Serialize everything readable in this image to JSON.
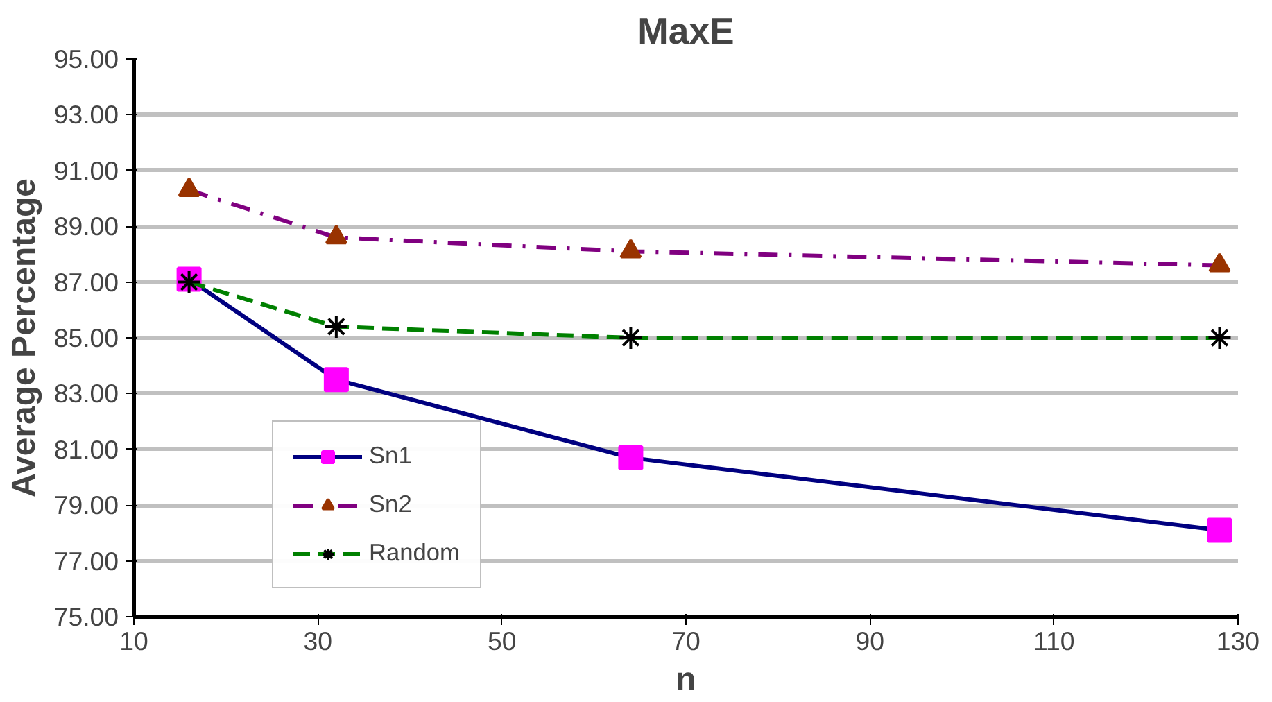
{
  "chart_data": {
    "type": "line",
    "title": "MaxE",
    "xlabel": "n",
    "ylabel": "Average Percentage",
    "x": [
      16,
      32,
      64,
      128
    ],
    "xlim": [
      10,
      130
    ],
    "xticks": [
      10,
      30,
      50,
      70,
      90,
      110,
      130
    ],
    "ylim": [
      75,
      95
    ],
    "yticks": [
      {
        "value": 75,
        "label": "75.00"
      },
      {
        "value": 77,
        "label": "77.00"
      },
      {
        "value": 79,
        "label": "79.00"
      },
      {
        "value": 81,
        "label": "81.00"
      },
      {
        "value": 83,
        "label": "83.00"
      },
      {
        "value": 85,
        "label": "85.00"
      },
      {
        "value": 87,
        "label": "87.00"
      },
      {
        "value": 89,
        "label": "89.00"
      },
      {
        "value": 91,
        "label": "91.00"
      },
      {
        "value": 93,
        "label": "93.00"
      },
      {
        "value": 95,
        "label": "95.00"
      }
    ],
    "grid": "y",
    "legend": "bottom left",
    "series": [
      {
        "name": "Sn1",
        "color": "#000080",
        "colors": [
          "#ff00ff",
          "#ff00ff",
          "#ff00ff",
          "#ff00ff"
        ],
        "marker": "square",
        "line_style": "solid",
        "values": [
          87.1,
          83.5,
          80.7,
          78.1
        ]
      },
      {
        "name": "Sn2",
        "color": "#800080",
        "colors": [
          "#993300",
          "#993300",
          "#993300",
          "#993300"
        ],
        "marker": "triangle",
        "line_style": "dashdot",
        "values": [
          90.3,
          88.6,
          88.1,
          87.6
        ]
      },
      {
        "name": "Random",
        "color": "#008000",
        "colors": [
          "#000000",
          "#000000",
          "#000000",
          "#000000"
        ],
        "marker": "cross",
        "line_style": "dashed",
        "values": [
          87.0,
          85.4,
          85.0,
          85.0
        ]
      }
    ]
  }
}
